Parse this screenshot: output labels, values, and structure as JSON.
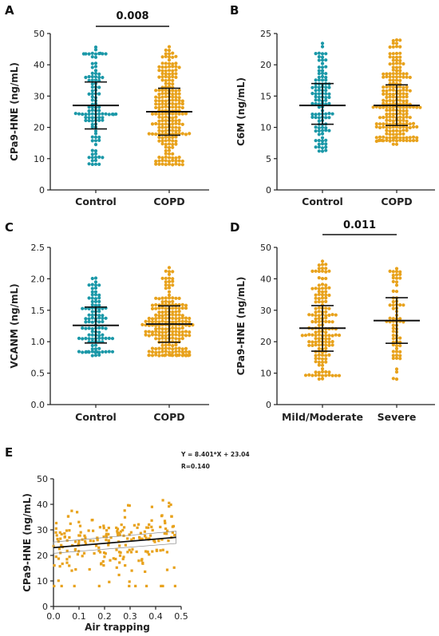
{
  "colors": {
    "control": "#1b98a8",
    "copd": "#e8a21c",
    "axis": "#222222",
    "summary": "#111111"
  },
  "chart_data": [
    {
      "type": "scatter",
      "panel": "A",
      "ylabel": "CPa9-HNE (ng/mL)",
      "ylim": [
        0,
        50
      ],
      "yticks": [
        "0",
        "10",
        "20",
        "30",
        "40",
        "50"
      ],
      "categories": [
        "Control",
        "COPD"
      ],
      "series": [
        {
          "name": "Control",
          "n": 110,
          "median": 27,
          "q1": 19.5,
          "q3": 34.5,
          "min": 8,
          "max": 45.5,
          "color": "control"
        },
        {
          "name": "COPD",
          "n": 220,
          "median": 25,
          "q1": 17.5,
          "q3": 32.5,
          "min": 8,
          "max": 45.5,
          "color": "copd"
        }
      ],
      "annotation": {
        "text": "0.008",
        "from": 0,
        "to": 1
      }
    },
    {
      "type": "scatter",
      "panel": "B",
      "ylabel": "C6M (ng/mL)",
      "ylim": [
        0,
        25
      ],
      "yticks": [
        "0",
        "5",
        "10",
        "15",
        "20",
        "25"
      ],
      "categories": [
        "Control",
        "COPD"
      ],
      "series": [
        {
          "name": "Control",
          "n": 110,
          "median": 13.5,
          "q1": 10.5,
          "q3": 17,
          "min": 6.5,
          "max": 23.5,
          "color": "control"
        },
        {
          "name": "COPD",
          "n": 220,
          "median": 13.5,
          "q1": 10.3,
          "q3": 16.8,
          "min": 7.5,
          "max": 24,
          "color": "copd"
        }
      ]
    },
    {
      "type": "scatter",
      "panel": "C",
      "ylabel": "VCANM (ng/mL)",
      "ylim": [
        0,
        2.5
      ],
      "yticks": [
        "0.0",
        "0.5",
        "1.0",
        "1.5",
        "2.0",
        "2.5"
      ],
      "categories": [
        "Control",
        "COPD"
      ],
      "series": [
        {
          "name": "Control",
          "n": 110,
          "median": 1.26,
          "q1": 0.98,
          "q3": 1.55,
          "min": 0.8,
          "max": 2.02,
          "color": "control"
        },
        {
          "name": "COPD",
          "n": 220,
          "median": 1.28,
          "q1": 0.99,
          "q3": 1.57,
          "min": 0.78,
          "max": 2.15,
          "color": "copd"
        }
      ]
    },
    {
      "type": "scatter",
      "panel": "D",
      "ylabel": "CPa9-HNE (ng/mL)",
      "ylim": [
        0,
        50
      ],
      "yticks": [
        "0",
        "10",
        "20",
        "30",
        "40",
        "50"
      ],
      "categories": [
        "Mild/Moderate",
        "Severe"
      ],
      "series": [
        {
          "name": "Mild/Moderate",
          "n": 160,
          "median": 24.3,
          "q1": 17,
          "q3": 31.5,
          "min": 8,
          "max": 45.5,
          "color": "copd"
        },
        {
          "name": "Severe",
          "n": 70,
          "median": 26.7,
          "q1": 19.5,
          "q3": 34,
          "min": 8,
          "max": 43,
          "color": "copd"
        }
      ],
      "annotation": {
        "text": "0.011",
        "from": 0,
        "to": 1
      }
    },
    {
      "type": "scatter",
      "panel": "E",
      "xlabel": "Air trapping",
      "ylabel": "CPa9-HNE (ng/mL)",
      "xlim": [
        0,
        0.5
      ],
      "ylim": [
        0,
        50
      ],
      "xticks": [
        "0.0",
        "0.1",
        "0.2",
        "0.3",
        "0.4",
        "0.5"
      ],
      "yticks": [
        "0",
        "10",
        "20",
        "30",
        "40",
        "50"
      ],
      "n": 220,
      "x_range": [
        0,
        0.48
      ],
      "fit": {
        "slope": 8.401,
        "intercept": 23.04,
        "x_range": [
          0,
          0.48
        ]
      },
      "equation": "Y = 8.401*X + 23.04",
      "r_text": "R=0.140"
    }
  ]
}
